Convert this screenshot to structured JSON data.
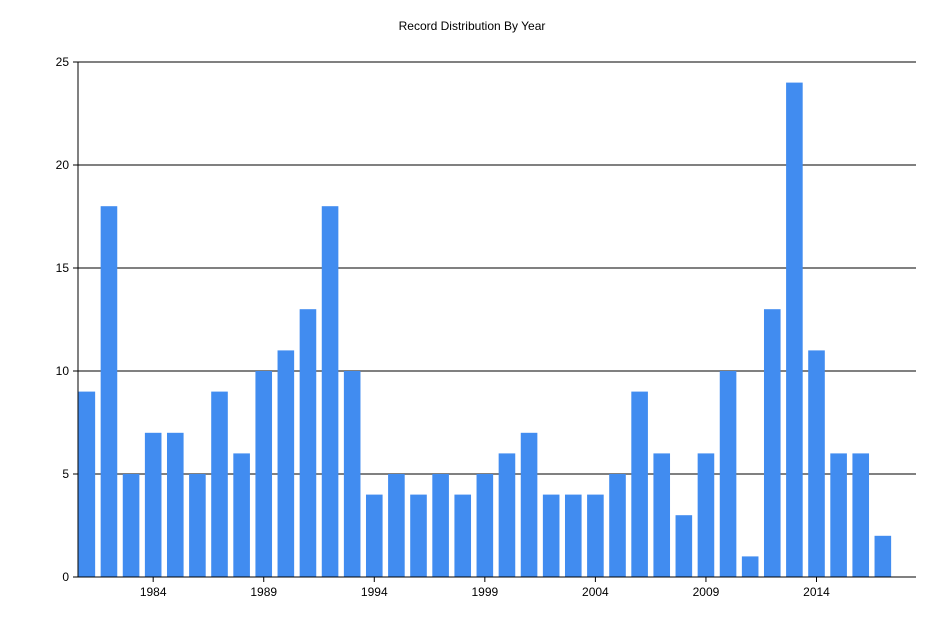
{
  "chart_data": {
    "type": "bar",
    "title": "Record Distribution By Year",
    "xlabel": "",
    "ylabel": "",
    "categories": [
      1981,
      1982,
      1983,
      1984,
      1985,
      1986,
      1987,
      1988,
      1989,
      1990,
      1991,
      1992,
      1993,
      1994,
      1995,
      1996,
      1997,
      1998,
      1999,
      2000,
      2001,
      2002,
      2003,
      2004,
      2005,
      2006,
      2007,
      2008,
      2009,
      2010,
      2011,
      2012,
      2013,
      2014,
      2015,
      2016,
      2017
    ],
    "values": [
      9,
      18,
      5,
      7,
      7,
      5,
      9,
      6,
      10,
      11,
      13,
      18,
      10,
      4,
      5,
      4,
      5,
      4,
      5,
      6,
      7,
      4,
      4,
      4,
      5,
      9,
      6,
      3,
      6,
      10,
      1,
      13,
      24,
      11,
      6,
      6,
      2
    ],
    "x_tick_labels": [
      "1984",
      "1989",
      "1994",
      "1999",
      "2004",
      "2009",
      "2014"
    ],
    "y_ticks": [
      0,
      5,
      10,
      15,
      20,
      25
    ],
    "ylim": [
      0,
      25
    ],
    "grid": "horizontal",
    "bar_color": "#418CF0"
  }
}
